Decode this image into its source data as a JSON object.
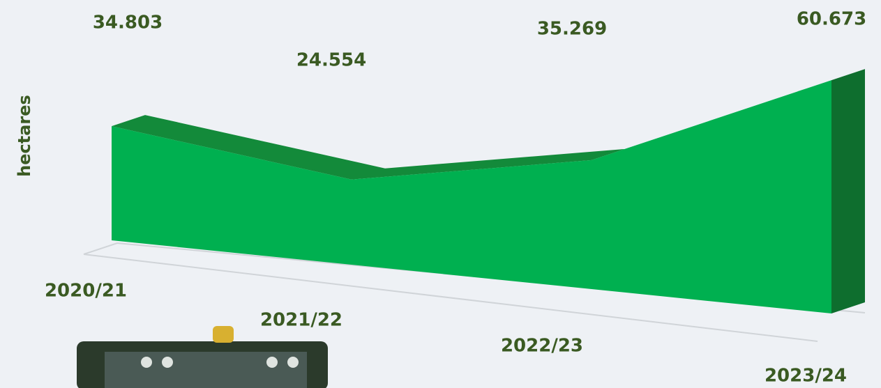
{
  "chart_data": {
    "type": "area3d",
    "y_label": "hectares",
    "categories": [
      "2020/21",
      "2021/22",
      "2022/23",
      "2023/24"
    ],
    "values": [
      34803,
      24554,
      35269,
      60673
    ],
    "value_labels": [
      "34.803",
      "24.554",
      "35.269",
      "60.673"
    ],
    "color": "#00b050"
  }
}
